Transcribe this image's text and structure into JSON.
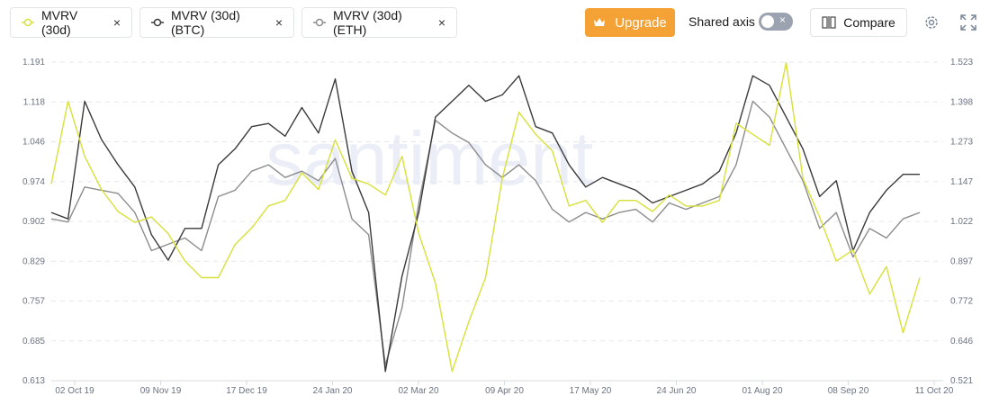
{
  "toolbar": {
    "chips": [
      {
        "label": "MVRV (30d)",
        "color": "#d8e03a"
      },
      {
        "label": "MVRV (30d) (BTC)",
        "color": "#3a3a3a"
      },
      {
        "label": "MVRV (30d) (ETH)",
        "color": "#8c8c8c"
      }
    ],
    "close_glyph": "×",
    "upgrade_label": "Upgrade",
    "shared_axis_label": "Shared axis",
    "toggle_glyph": "×",
    "compare_label": "Compare",
    "icons": [
      "crown-icon",
      "compare-icon",
      "gear-icon",
      "fullscreen-icon"
    ]
  },
  "chart_data": {
    "type": "line",
    "watermark": "santiment",
    "grid": true,
    "x_ticks": [
      "02 Oct 19",
      "09 Nov 19",
      "17 Dec 19",
      "24 Jan 20",
      "02 Mar 20",
      "09 Apr 20",
      "17 May 20",
      "24 Jun 20",
      "01 Aug 20",
      "08 Sep 20",
      "11 Oct 20"
    ],
    "y_left": {
      "ticks": [
        "1.191",
        "1.118",
        "1.046",
        "0.974",
        "0.902",
        "0.829",
        "0.757",
        "0.685",
        "0.613"
      ],
      "range": [
        0.613,
        1.191
      ]
    },
    "y_right": {
      "ticks": [
        "1.523",
        "1.398",
        "1.273",
        "1.147",
        "1.022",
        "0.897",
        "0.772",
        "0.646",
        "0.521"
      ],
      "range": [
        0.521,
        1.523
      ]
    },
    "series": [
      {
        "name": "MVRV (30d)",
        "axis": "left",
        "color": "#d8e03a",
        "values": [
          0.97,
          1.12,
          1.02,
          0.96,
          0.92,
          0.9,
          0.91,
          0.88,
          0.83,
          0.8,
          0.8,
          0.86,
          0.89,
          0.93,
          0.94,
          0.99,
          0.96,
          1.05,
          0.98,
          0.97,
          0.95,
          1.02,
          0.88,
          0.79,
          0.63,
          0.72,
          0.8,
          0.98,
          1.1,
          1.06,
          1.03,
          0.93,
          0.94,
          0.9,
          0.94,
          0.94,
          0.92,
          0.95,
          0.93,
          0.93,
          0.94,
          1.08,
          1.06,
          1.04,
          1.19,
          0.98,
          0.91,
          0.83,
          0.85,
          0.77,
          0.82,
          0.7,
          0.8
        ]
      },
      {
        "name": "MVRV (30d) (BTC)",
        "axis": "right",
        "color": "#3a3a3a",
        "values": [
          1.05,
          1.03,
          1.4,
          1.28,
          1.2,
          1.13,
          0.98,
          0.9,
          1.0,
          1.0,
          1.2,
          1.25,
          1.32,
          1.33,
          1.29,
          1.38,
          1.3,
          1.47,
          1.18,
          1.05,
          0.55,
          0.85,
          1.05,
          1.35,
          1.4,
          1.45,
          1.4,
          1.42,
          1.48,
          1.32,
          1.3,
          1.2,
          1.13,
          1.16,
          1.14,
          1.12,
          1.08,
          1.1,
          1.12,
          1.14,
          1.18,
          1.3,
          1.48,
          1.45,
          1.35,
          1.25,
          1.1,
          1.15,
          0.93,
          1.05,
          1.12,
          1.17,
          1.17
        ]
      },
      {
        "name": "MVRV (30d) (ETH)",
        "axis": "right",
        "color": "#8c8c8c",
        "values": [
          1.03,
          1.02,
          1.13,
          1.12,
          1.11,
          1.05,
          0.93,
          0.95,
          0.97,
          0.93,
          1.1,
          1.12,
          1.18,
          1.2,
          1.16,
          1.18,
          1.15,
          1.22,
          1.03,
          0.98,
          0.57,
          0.75,
          1.08,
          1.34,
          1.3,
          1.27,
          1.2,
          1.16,
          1.2,
          1.15,
          1.06,
          1.02,
          1.05,
          1.03,
          1.05,
          1.06,
          1.02,
          1.08,
          1.06,
          1.08,
          1.1,
          1.2,
          1.4,
          1.35,
          1.25,
          1.15,
          1.0,
          1.05,
          0.91,
          1.0,
          0.97,
          1.03,
          1.05
        ]
      }
    ]
  }
}
